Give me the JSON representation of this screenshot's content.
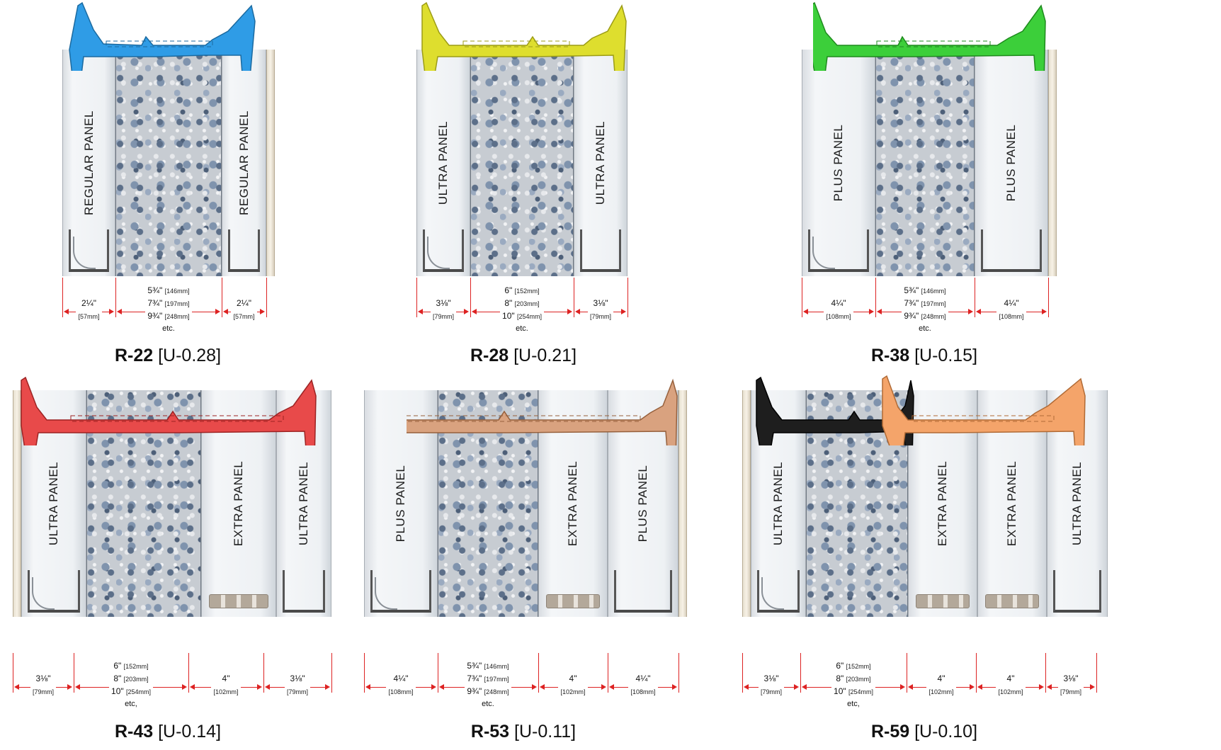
{
  "diagrams": [
    {
      "r_value": "R-22",
      "u_value": "[U-0.28]",
      "tie_color": "#2f9ce6",
      "panels": [
        "REGULAR PANEL",
        "REGULAR PANEL"
      ],
      "dims": [
        {
          "big": "2¼\"",
          "small": "[57mm]"
        },
        {
          "lines": [
            {
              "big": "5¾\"",
              "small": "[146mm]"
            },
            {
              "big": "7¾\"",
              "small": "[197mm]"
            },
            {
              "big": "9¾\"",
              "small": "[248mm]"
            }
          ],
          "etc": "etc."
        },
        {
          "big": "2¼\"",
          "small": "[57mm]"
        }
      ]
    },
    {
      "r_value": "R-28",
      "u_value": "[U-0.21]",
      "tie_color": "#dede2e",
      "panels": [
        "ULTRA PANEL",
        "ULTRA PANEL"
      ],
      "dims": [
        {
          "big": "3⅛\"",
          "small": "[79mm]"
        },
        {
          "lines": [
            {
              "big": "6\"",
              "small": "[152mm]"
            },
            {
              "big": "8\"",
              "small": "[203mm]"
            },
            {
              "big": "10\"",
              "small": "[254mm]"
            }
          ],
          "etc": "etc."
        },
        {
          "big": "3⅛\"",
          "small": "[79mm]"
        }
      ]
    },
    {
      "r_value": "R-38",
      "u_value": "[U-0.15]",
      "tie_color": "#3ccf3a",
      "panels": [
        "PLUS PANEL",
        "PLUS PANEL"
      ],
      "dims": [
        {
          "big": "4¼\"",
          "small": "[108mm]"
        },
        {
          "lines": [
            {
              "big": "5¾\"",
              "small": "[146mm]"
            },
            {
              "big": "7¾\"",
              "small": "[197mm]"
            },
            {
              "big": "9¾\"",
              "small": "[248mm]"
            }
          ],
          "etc": "etc."
        },
        {
          "big": "4¼\"",
          "small": "[108mm]"
        }
      ]
    },
    {
      "r_value": "R-43",
      "u_value": "[U-0.14]",
      "tie_color": "#e84a4a",
      "panels": [
        "ULTRA PANEL",
        "EXTRA PANEL",
        "ULTRA PANEL"
      ],
      "dims": [
        {
          "big": "3⅛\"",
          "small": "[79mm]"
        },
        {
          "lines": [
            {
              "big": "6\"",
              "small": "[152mm]"
            },
            {
              "big": "8\"",
              "small": "[203mm]"
            },
            {
              "big": "10\"",
              "small": "[254mm]"
            }
          ],
          "etc": "etc,"
        },
        {
          "big": "4\"",
          "small": "[102mm]"
        },
        {
          "big": "3⅛\"",
          "small": "[79mm]"
        }
      ]
    },
    {
      "r_value": "R-53",
      "u_value": "[U-0.11]",
      "tie_color": "#d9a27f",
      "panels": [
        "PLUS PANEL",
        "EXTRA PANEL",
        "PLUS PANEL"
      ],
      "dims": [
        {
          "big": "4¼\"",
          "small": "[108mm]"
        },
        {
          "lines": [
            {
              "big": "5¾\"",
              "small": "[146mm]"
            },
            {
              "big": "7¾\"",
              "small": "[197mm]"
            },
            {
              "big": "9¾\"",
              "small": "[248mm]"
            }
          ],
          "etc": "etc."
        },
        {
          "big": "4\"",
          "small": "[102mm]"
        },
        {
          "big": "4¼\"",
          "small": "[108mm]"
        }
      ]
    },
    {
      "r_value": "R-59",
      "u_value": "[U-0.10]",
      "tie_color": "#f4a46a",
      "tie_color_alt": "#1e1e1e",
      "panels": [
        "ULTRA PANEL",
        "EXTRA PANEL",
        "EXTRA PANEL",
        "ULTRA PANEL"
      ],
      "dims": [
        {
          "big": "3⅛\"",
          "small": "[79mm]"
        },
        {
          "lines": [
            {
              "big": "6\"",
              "small": "[152mm]"
            },
            {
              "big": "8\"",
              "small": "[203mm]"
            },
            {
              "big": "10\"",
              "small": "[254mm]"
            }
          ],
          "etc": "etc,"
        },
        {
          "big": "4\"",
          "small": "[102mm]"
        },
        {
          "big": "4\"",
          "small": "[102mm]"
        },
        {
          "big": "3⅛\"",
          "small": "[79mm]"
        }
      ]
    }
  ]
}
